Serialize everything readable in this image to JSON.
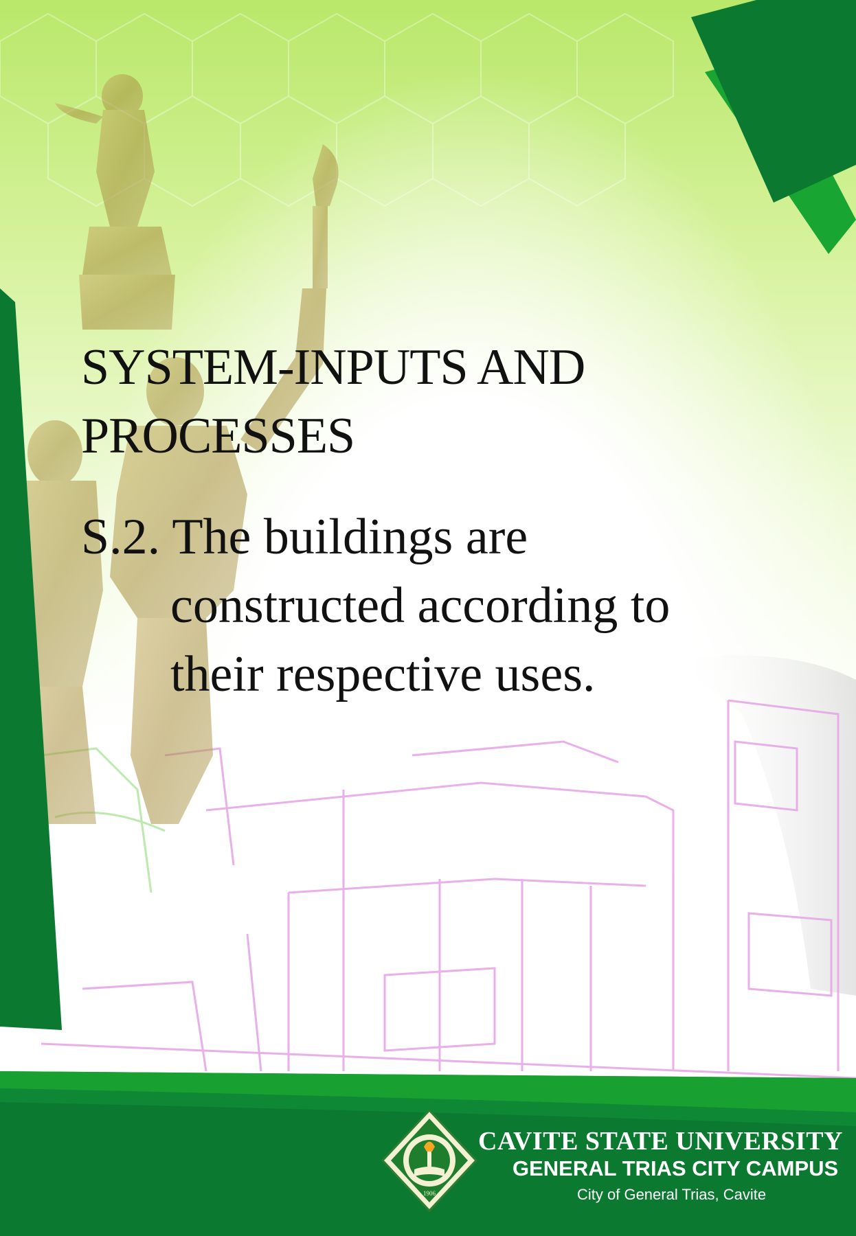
{
  "slide": {
    "heading": "SYSTEM-INPUTS AND PROCESSES",
    "item_number": "S.2.",
    "item_text_line1": "The buildings are",
    "item_text_line2": "constructed according to",
    "item_text_line3": "their respective uses."
  },
  "footer": {
    "university": "CAVITE STATE UNIVERSITY",
    "campus": "GENERAL TRIAS CITY CAMPUS",
    "location": "City of General Trias, Cavite",
    "seal_year": "1906"
  },
  "colors": {
    "dark_green": "#0b7a30",
    "bright_green": "#19a532",
    "light_green": "#b9e86a",
    "outline_pink": "#e7a7e8"
  }
}
